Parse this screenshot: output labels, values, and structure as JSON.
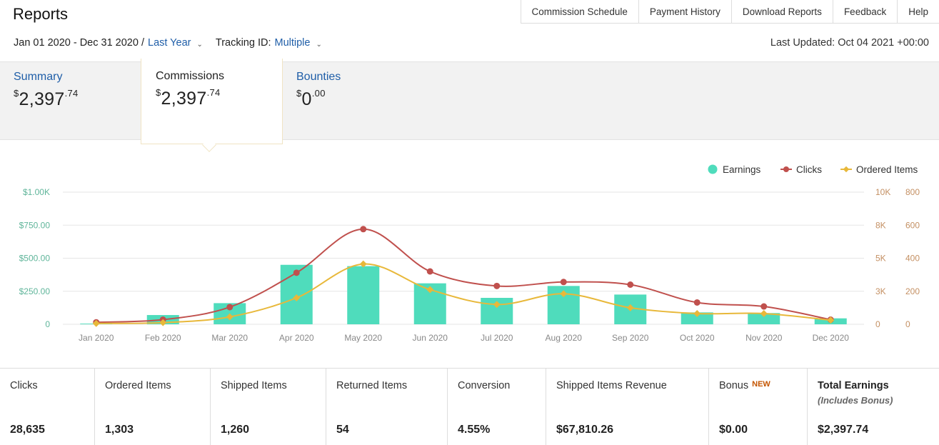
{
  "header": {
    "title": "Reports",
    "tabs": [
      "Commission Schedule",
      "Payment History",
      "Download Reports",
      "Feedback",
      "Help"
    ]
  },
  "filters": {
    "date_range": "Jan 01 2020 - Dec 31 2020 /",
    "date_preset": "Last Year",
    "tracking_label": "Tracking ID:",
    "tracking_value": "Multiple",
    "last_updated": "Last Updated: Oct 04 2021 +00:00"
  },
  "summary": {
    "tabs": [
      {
        "label": "Summary",
        "dollars": "2,397",
        "cents": ".74"
      },
      {
        "label": "Commissions",
        "dollars": "2,397",
        "cents": ".74"
      },
      {
        "label": "Bounties",
        "dollars": "0",
        "cents": ".00"
      }
    ],
    "currency": "$",
    "active": "Commissions"
  },
  "chart_data": {
    "type": "bar",
    "categories": [
      "Jan 2020",
      "Feb 2020",
      "Mar 2020",
      "Apr 2020",
      "May 2020",
      "Jun 2020",
      "Jul 2020",
      "Aug 2020",
      "Sep 2020",
      "Oct 2020",
      "Nov 2020",
      "Dec 2020"
    ],
    "series": [
      {
        "name": "Earnings",
        "kind": "bar",
        "axis": "left",
        "color": "#4fdcbc",
        "values": [
          5,
          70,
          160,
          450,
          440,
          310,
          200,
          290,
          225,
          90,
          85,
          45
        ]
      },
      {
        "name": "Clicks",
        "kind": "line",
        "axis": "right1",
        "color": "#c0504d",
        "values": [
          150,
          350,
          1300,
          3900,
          7200,
          4000,
          2900,
          3200,
          3000,
          1650,
          1350,
          350
        ]
      },
      {
        "name": "Ordered Items",
        "kind": "line",
        "axis": "right2",
        "color": "#e8b83a",
        "values": [
          5,
          10,
          45,
          160,
          365,
          210,
          120,
          185,
          100,
          65,
          65,
          25
        ]
      }
    ],
    "y_left": {
      "ticks": [
        "0",
        "$250.00",
        "$500.00",
        "$750.00",
        "$1.00K"
      ],
      "max": 1000
    },
    "y_right1": {
      "ticks": [
        "0",
        "3K",
        "5K",
        "8K",
        "10K"
      ],
      "max": 10000
    },
    "y_right2": {
      "ticks": [
        "0",
        "200",
        "400",
        "600",
        "800"
      ],
      "max": 800
    },
    "legend": [
      "Earnings",
      "Clicks",
      "Ordered Items"
    ],
    "grid": true,
    "legend_position": "top-right"
  },
  "stats": [
    {
      "label": "Clicks",
      "value": "28,635"
    },
    {
      "label": "Ordered Items",
      "value": "1,303"
    },
    {
      "label": "Shipped Items",
      "value": "1,260"
    },
    {
      "label": "Returned Items",
      "value": "54"
    },
    {
      "label": "Conversion",
      "value": "4.55%"
    },
    {
      "label": "Shipped Items Revenue",
      "value": "$67,810.26"
    },
    {
      "label": "Bonus",
      "badge": "NEW",
      "value": "$0.00"
    },
    {
      "label": "Total Earnings",
      "sub": "(Includes Bonus)",
      "value": "$2,397.74"
    }
  ],
  "icons": {
    "dropdown": "chevron-down-icon"
  }
}
